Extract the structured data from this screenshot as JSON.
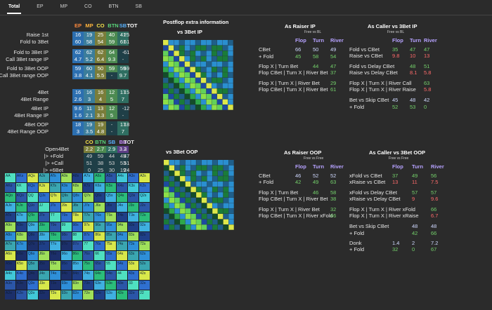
{
  "tabs": [
    "Total",
    "EP",
    "MP",
    "CO",
    "BTN",
    "SB"
  ],
  "left": {
    "headers": {
      "ep": "EP",
      "mp": "MP",
      "co": "CO",
      "btn": "BTN",
      "sb": "SB",
      "tot": "TOT"
    },
    "block1": [
      {
        "label": "Raise 1st",
        "vals": [
          "16",
          "19",
          "25",
          "40",
          "41"
        ],
        "tot": "25"
      },
      {
        "label": "Fold to 3Bet",
        "vals": [
          "60",
          "58",
          "54",
          "59",
          "61"
        ],
        "tot": "61"
      }
    ],
    "block2": [
      {
        "label": "Fold to 3Bet IP",
        "vals": [
          "62",
          "62",
          "62",
          "64",
          "-"
        ],
        "tot": "61"
      },
      {
        "label": "Call 3Bet range IP",
        "vals": [
          "4.7",
          "5.2",
          "6.4",
          "9.3",
          "-"
        ],
        "tot": ""
      }
    ],
    "block3": [
      {
        "label": "Fold to 3Bet OOP",
        "vals": [
          "59",
          "60",
          "50",
          "59",
          "59"
        ],
        "tot": "59"
      },
      {
        "label": "Call 3Bet range OOP",
        "vals": [
          "3.8",
          "4.1",
          "5.5",
          "-",
          "9.7"
        ],
        "tot": ""
      }
    ],
    "block4": [
      {
        "label": "4Bet",
        "vals": [
          "16",
          "16",
          "16",
          "12",
          "17"
        ],
        "tot": "15"
      },
      {
        "label": "4Bet Range",
        "vals": [
          "2.6",
          "3",
          "4",
          "5",
          "7"
        ],
        "tot": ""
      }
    ],
    "block5": [
      {
        "label": "4Bet IP",
        "vals": [
          "9.6",
          "11",
          "13",
          "12",
          "-"
        ],
        "tot": "12"
      },
      {
        "label": "4Bet Range IP",
        "vals": [
          "1.6",
          "2.1",
          "3.3",
          "5",
          "-"
        ],
        "tot": ""
      }
    ],
    "block6": [
      {
        "label": "4Bet OOP",
        "vals": [
          "18",
          "19",
          "19",
          "-",
          "17"
        ],
        "tot": "18"
      },
      {
        "label": "4Bet Range OOP",
        "vals": [
          "3",
          "3.5",
          "4.8",
          "-",
          "7"
        ],
        "tot": ""
      }
    ],
    "open_headers": {
      "co": "CO",
      "btn": "BTN",
      "sb": "SB",
      "bb": "BB",
      "tot": "TOT"
    },
    "open4bet": [
      {
        "label": "Open4Bet",
        "vals": [
          "2.2",
          "2.7",
          "2.9",
          "3.2"
        ],
        "tot": "3"
      },
      {
        "label": "|> +Fold",
        "vals": [
          "49",
          "59",
          "44",
          "45"
        ],
        "tot": "47"
      },
      {
        "label": "|> +Call",
        "vals": [
          "51",
          "38",
          "53",
          "53"
        ],
        "tot": "51"
      },
      {
        "label": "|> +6Bet",
        "vals": [
          "0",
          "25",
          "30",
          "19"
        ],
        "tot": "24"
      }
    ]
  },
  "grid": [
    [
      "AA",
      "AKs",
      "AQs",
      "AJs",
      "ATs",
      "A9s",
      "A8s",
      "A7s",
      "A6s",
      "A5s",
      "A4s",
      "A3s",
      "A2s"
    ],
    [
      "AKo",
      "KK",
      "KQs",
      "KJs",
      "KTs",
      "K9s",
      "K8s",
      "K7s",
      "K6s",
      "K5s",
      "K4s",
      "K3s",
      "K2s"
    ],
    [
      "AQo",
      "KQo",
      "QQ",
      "QJs",
      "QTs",
      "Q9s",
      "Q8s",
      "Q7s",
      "Q6s",
      "Q5s",
      "Q4s",
      "Q3s",
      "Q2s"
    ],
    [
      "AJo",
      "KJo",
      "QJo",
      "JJ",
      "JTs",
      "J9s",
      "J8s",
      "J7s",
      "J6s",
      "J5s",
      "J4s",
      "J3s",
      "J2s"
    ],
    [
      "ATo",
      "KTo",
      "QTo",
      "JTo",
      "TT",
      "T9s",
      "T8s",
      "T7s",
      "T6s",
      "T5s",
      "T4s",
      "T3s",
      "T2s"
    ],
    [
      "A9o",
      "K9o",
      "Q9o",
      "J9o",
      "T9o",
      "99",
      "98s",
      "97s",
      "96s",
      "95s",
      "94s",
      "93s",
      "92s"
    ],
    [
      "A8o",
      "K8o",
      "Q8o",
      "J8o",
      "T8o",
      "98o",
      "88",
      "87s",
      "86s",
      "85s",
      "84s",
      "83s",
      "82s"
    ],
    [
      "A7o",
      "K7o",
      "Q7o",
      "J7o",
      "T7o",
      "97o",
      "87o",
      "77",
      "76s",
      "75s",
      "74s",
      "73s",
      "72s"
    ],
    [
      "A6o",
      "K6o",
      "Q6o",
      "J6o",
      "T6o",
      "96o",
      "86o",
      "76o",
      "66",
      "65s",
      "64s",
      "63s",
      "62s"
    ],
    [
      "A5o",
      "K5o",
      "Q5o",
      "J5o",
      "T5o",
      "95o",
      "85o",
      "75o",
      "65o",
      "55",
      "54s",
      "53s",
      "52s"
    ],
    [
      "A4o",
      "K4o",
      "Q4o",
      "J4o",
      "T4o",
      "94o",
      "84o",
      "74o",
      "64o",
      "54o",
      "44",
      "43s",
      "42s"
    ],
    [
      "A3o",
      "K3o",
      "Q3o",
      "J3o",
      "T3o",
      "93o",
      "83o",
      "73o",
      "63o",
      "53o",
      "43o",
      "33",
      "32s"
    ],
    [
      "A2o",
      "K2o",
      "Q2o",
      "J2o",
      "T2o",
      "92o",
      "82o",
      "72o",
      "62o",
      "52o",
      "42o",
      "32o",
      "22"
    ]
  ],
  "postflop": {
    "title": "Postflop extra information",
    "vs3bet_ip": "vs 3Bet IP",
    "vs3bet_oop": "vs 3Bet OOP",
    "raiser_ip": {
      "title": "As Raiser IP",
      "sub": "Free vs BL",
      "hdr": [
        "Flop",
        "Turn",
        "River"
      ],
      "rows": [
        {
          "label": "CBet",
          "vals": [
            "66",
            "50",
            "49"
          ]
        },
        {
          "label": "+ Fold",
          "vals": [
            "45",
            "58",
            "54"
          ]
        },
        {
          "label": "Flop X | Turn Bet",
          "vals": [
            "",
            "44",
            "47"
          ]
        },
        {
          "label": "Flop CBet | Turn X | River Bet",
          "vals": [
            "",
            "",
            "37"
          ]
        },
        {
          "label": "Flop X | Turn X | River Bet",
          "vals": [
            "",
            "",
            "29"
          ]
        },
        {
          "label": "Flop CBet | Turn X | River Bet",
          "vals": [
            "",
            "",
            "61"
          ]
        }
      ]
    },
    "caller_ip": {
      "title": "As Caller vs 3Bet IP",
      "sub": "Free vs BL",
      "hdr": [
        "Flop",
        "Turn",
        "River"
      ],
      "rows": [
        {
          "label": "Fold vs CBet",
          "vals": [
            "35",
            "47",
            "47"
          ]
        },
        {
          "label": "Raise vs CBet",
          "vals": [
            "9.8",
            "10",
            "13"
          ]
        },
        {
          "label": "Fold vs Delay CBet",
          "vals": [
            "",
            "48",
            "51"
          ]
        },
        {
          "label": "Raise vs Delay CBet",
          "vals": [
            "",
            "8.1",
            "5.8"
          ]
        },
        {
          "label": "Flop X | Turn X | River Call",
          "vals": [
            "",
            "",
            "63"
          ]
        },
        {
          "label": "Flop X | Turn X | River Raise",
          "vals": [
            "",
            "",
            "5.8"
          ]
        },
        {
          "label": "Bet vs Skip CBet",
          "vals": [
            "45",
            "48",
            "42"
          ]
        },
        {
          "label": "+ Fold",
          "vals": [
            "52",
            "53",
            "0"
          ]
        }
      ]
    },
    "raiser_oop": {
      "title": "As Raiser OOP",
      "sub": "Free vs Free",
      "hdr": [
        "Flop",
        "Turn",
        "River"
      ],
      "rows": [
        {
          "label": "CBet",
          "vals": [
            "46",
            "52",
            "52"
          ]
        },
        {
          "label": "+ Fold",
          "vals": [
            "42",
            "49",
            "63"
          ]
        },
        {
          "label": "Flop X | Turn Bet",
          "vals": [
            "",
            "46",
            "58"
          ]
        },
        {
          "label": "Flop CBet | Turn X | River Bet",
          "vals": [
            "",
            "",
            "38"
          ]
        },
        {
          "label": "Flop X | Turn X | River Bet",
          "vals": [
            "",
            "",
            "32"
          ]
        },
        {
          "label": "Flop CBet | Turn X | River xFold",
          "vals": [
            "",
            "",
            "66"
          ]
        }
      ]
    },
    "caller_oop": {
      "title": "As Caller vs 3Bet OOP",
      "sub": "Free vs Free",
      "hdr": [
        "Flop",
        "Turn",
        "River"
      ],
      "rows": [
        {
          "label": "xFold vs CBet",
          "vals": [
            "37",
            "49",
            "56"
          ]
        },
        {
          "label": "xRaise vs CBet",
          "vals": [
            "13",
            "11",
            "7.5"
          ]
        },
        {
          "label": "xFold vs Delay CBet",
          "vals": [
            "",
            "57",
            "57"
          ]
        },
        {
          "label": "xRaise vs Delay CBet",
          "vals": [
            "",
            "9",
            "9.6"
          ]
        },
        {
          "label": "Flop X | Turn X | River xFold",
          "vals": [
            "",
            "",
            "66"
          ]
        },
        {
          "label": "Flop X | Turn X | River xRaise",
          "vals": [
            "",
            "",
            "6.7"
          ]
        },
        {
          "label": "Bet vs Skip CBet",
          "vals": [
            "",
            "48",
            "48"
          ]
        },
        {
          "label": "+ Fold",
          "vals": [
            "",
            "42",
            "66"
          ]
        },
        {
          "label": "Donk",
          "vals": [
            "1.4",
            "2",
            "7.2"
          ]
        },
        {
          "label": "+ Fold",
          "vals": [
            "32",
            "0",
            "67"
          ]
        }
      ]
    }
  }
}
